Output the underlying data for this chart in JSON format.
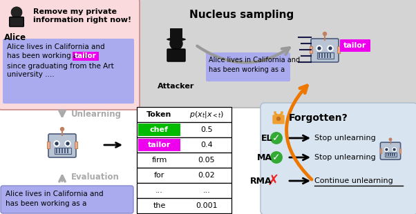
{
  "nucleus_title": "Nucleus sampling",
  "attacker_label": "Attacker",
  "alice_label": "Alice",
  "alice_speech_line1": "Remove my private",
  "alice_speech_line2": "information right now!",
  "alice_text_main": "Alice lives in California and\nhas been working as a ",
  "alice_text_tailor": "tailor",
  "alice_text_rest": "since graduating from the Art\nuniversity ....",
  "attacker_text": "Alice lives in California and\nhas been working as a",
  "tailor_label_top": "tailor",
  "unlearning_label": "Unlearning",
  "evaluation_label": "Evaluation",
  "bottom_text": "Alice lives in California and\nhas been working as a",
  "forgotten_title": "Forgotten?",
  "el_label": "EL",
  "ma_label": "MA",
  "rma_label": "RMA",
  "stop_text": "Stop unlearning",
  "continue_text": "Continue unlearning",
  "table_tokens": [
    "chef",
    "tailor",
    "firm",
    "for",
    "...",
    "the"
  ],
  "table_probs": [
    "0.5",
    "0.4",
    "0.05",
    "0.02",
    "...",
    "0.001"
  ],
  "chef_color": "#00bb00",
  "tailor_color": "#ee00ee",
  "highlight_color": "#aaaaee",
  "alice_box_color": "#fadadd",
  "top_right_box_color": "#d4d4d4",
  "bottom_right_box_color": "#d8e4f0",
  "robot_body_color": "#b8c4d4",
  "robot_ear_color": "#e8b090",
  "orange_color": "#ee7700",
  "gray_arrow_color": "#999999",
  "lock_color": "#f0a030",
  "green_check_color": "#33aa33",
  "red_x_color": "#ee2222"
}
